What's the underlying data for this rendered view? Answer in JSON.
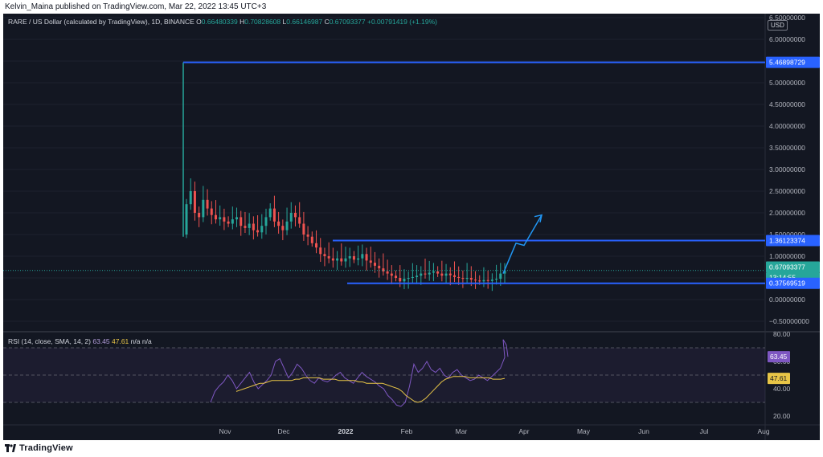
{
  "header": {
    "published_line": "Kelvin_Maina published on TradingView.com, Mar 22, 2022 13:45 UTC+3"
  },
  "legend": {
    "symbol": "RARE / US Dollar (calculated by TradingView), 1D, BINANCE",
    "o_label": "O",
    "o_value": "0.66480339",
    "h_label": "H",
    "h_value": "0.70828608",
    "l_label": "L",
    "l_value": "0.66146987",
    "c_label": "C",
    "c_value": "0.67093377",
    "change": "+0.00791419 (+1.19%)"
  },
  "price_axis": {
    "currency": "USD",
    "ticks": [
      "6.50000000",
      "6.00000000",
      "5.50000000",
      "5.00000000",
      "4.50000000",
      "4.00000000",
      "3.50000000",
      "3.00000000",
      "2.50000000",
      "2.00000000",
      "1.50000000",
      "1.00000000",
      "0.50000000",
      "0.00000000",
      "−0.50000000"
    ],
    "tick_values": [
      6.5,
      6.0,
      5.5,
      5.0,
      4.5,
      4.0,
      3.5,
      3.0,
      2.5,
      2.0,
      1.5,
      1.0,
      0.5,
      0.0,
      -0.5
    ],
    "level_top": "5.46898729",
    "level_mid": "1.36123374",
    "level_bottom": "0.37569519",
    "current_price": "0.67093377",
    "countdown": "13:14:55"
  },
  "rsi": {
    "label": "RSI (14, close, SMA, 14, 2)",
    "rsi_value": "63.45",
    "sma_value": "47.61",
    "na1": "n/a",
    "na2": "n/a",
    "ticks": [
      "80.00",
      "60.00",
      "40.00",
      "20.00"
    ]
  },
  "time_axis": [
    "Nov",
    "Dec",
    "2022",
    "Feb",
    "Mar",
    "Apr",
    "May",
    "Jun",
    "Jul",
    "Aug"
  ],
  "footer": {
    "brand": "TradingView"
  },
  "colors": {
    "bg": "#131722",
    "up": "#26a69a",
    "down": "#ef5350",
    "level_line": "#2962ff",
    "rsi_line": "#7e57c2",
    "rsi_sma": "#e8c547"
  },
  "chart_data": {
    "type": "candlestick",
    "title": "RARE / US Dollar (calculated by TradingView), 1D, BINANCE",
    "ylim": [
      -0.5,
      6.5
    ],
    "horizontal_levels": [
      5.46898729,
      1.36123374,
      0.37569519
    ],
    "last_close": 0.67093377,
    "closes": [
      2.2,
      2.5,
      2.0,
      1.9,
      2.3,
      2.1,
      1.95,
      1.85,
      1.9,
      1.8,
      1.75,
      1.85,
      1.9,
      1.7,
      1.65,
      1.75,
      1.6,
      1.55,
      1.7,
      1.9,
      2.1,
      1.8,
      1.7,
      1.6,
      1.8,
      2.0,
      1.9,
      1.75,
      1.5,
      1.45,
      1.3,
      1.2,
      1.05,
      1.0,
      0.95,
      0.9,
      0.95,
      0.88,
      0.95,
      1.0,
      0.92,
      0.95,
      1.05,
      0.9,
      0.85,
      0.78,
      0.72,
      0.65,
      0.6,
      0.55,
      0.5,
      0.42,
      0.48,
      0.5,
      0.52,
      0.55,
      0.6,
      0.58,
      0.62,
      0.65,
      0.6,
      0.55,
      0.6,
      0.56,
      0.52,
      0.5,
      0.48,
      0.5,
      0.46,
      0.44,
      0.42,
      0.45,
      0.43,
      0.46,
      0.48,
      0.6,
      0.67
    ],
    "rsi": [
      30,
      38,
      42,
      45,
      50,
      46,
      40,
      44,
      48,
      52,
      45,
      40,
      43,
      46,
      50,
      60,
      62,
      55,
      48,
      52,
      58,
      55,
      50,
      46,
      44,
      48,
      46,
      45,
      47,
      50,
      52,
      48,
      46,
      44,
      48,
      52,
      49,
      47,
      45,
      42,
      40,
      35,
      32,
      28,
      27,
      30,
      42,
      58,
      52,
      55,
      60,
      54,
      52,
      55,
      50,
      48,
      52,
      54,
      50,
      48,
      46,
      47,
      50,
      48,
      46,
      49,
      52,
      55,
      63
    ],
    "rsi_sma": [
      38,
      39,
      40,
      41,
      42,
      43,
      44,
      44,
      45,
      46,
      46,
      46,
      46,
      46,
      46,
      47,
      47,
      48,
      48,
      48,
      48,
      48,
      47,
      47,
      47,
      47,
      46,
      46,
      46,
      46,
      46,
      45,
      45,
      44,
      44,
      44,
      44,
      44,
      43,
      42,
      41,
      40,
      38,
      35,
      33,
      31,
      30,
      31,
      33,
      36,
      39,
      42,
      45,
      47,
      48,
      49,
      49,
      49,
      49,
      48,
      48,
      48,
      48,
      48,
      48,
      47,
      47,
      47,
      47.6
    ],
    "xlabels": [
      "Nov",
      "Dec",
      "2022",
      "Feb",
      "Mar",
      "Apr",
      "May",
      "Jun",
      "Jul",
      "Aug"
    ]
  }
}
